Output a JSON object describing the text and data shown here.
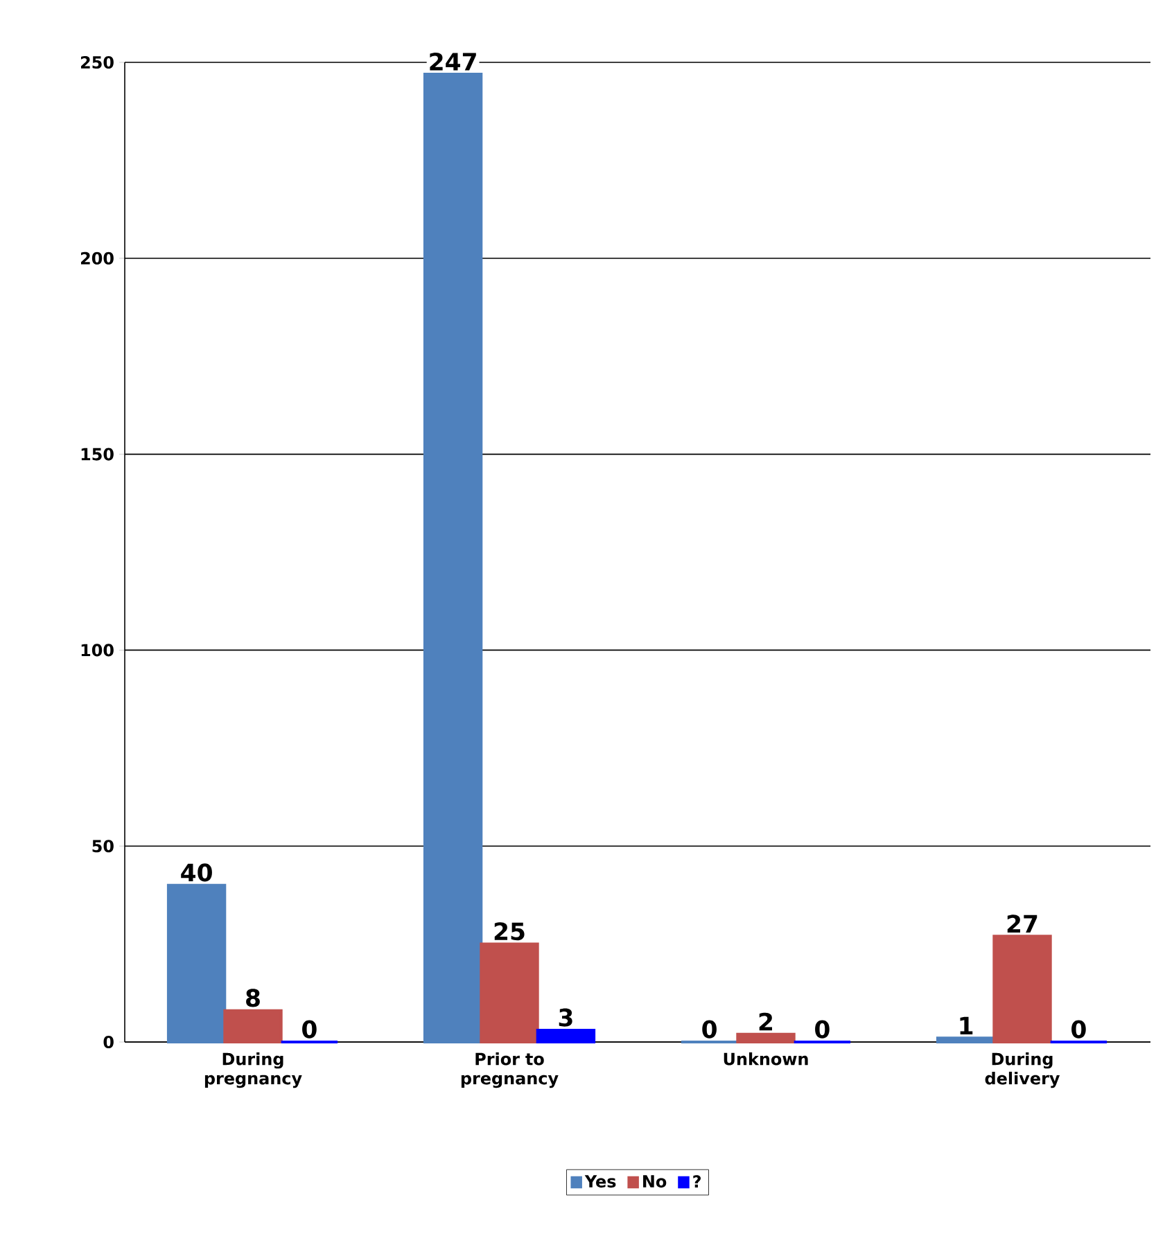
{
  "chart_data": {
    "type": "bar",
    "categories": [
      "During pregnancy",
      "Prior to pregnancy",
      "Unknown",
      "During delivery"
    ],
    "series": [
      {
        "name": "Yes",
        "color": "#4f81bd",
        "values": [
          40,
          247,
          0,
          1
        ]
      },
      {
        "name": "No",
        "color": "#c0504d",
        "values": [
          8,
          25,
          2,
          27
        ]
      },
      {
        "name": "?",
        "color": "#0000ff",
        "values": [
          0,
          3,
          0,
          0
        ]
      }
    ],
    "ylim": [
      0,
      250
    ],
    "yticks": [
      0,
      50,
      100,
      150,
      200,
      250
    ],
    "grid": "y",
    "legend": "bottom",
    "data_labels": true
  }
}
